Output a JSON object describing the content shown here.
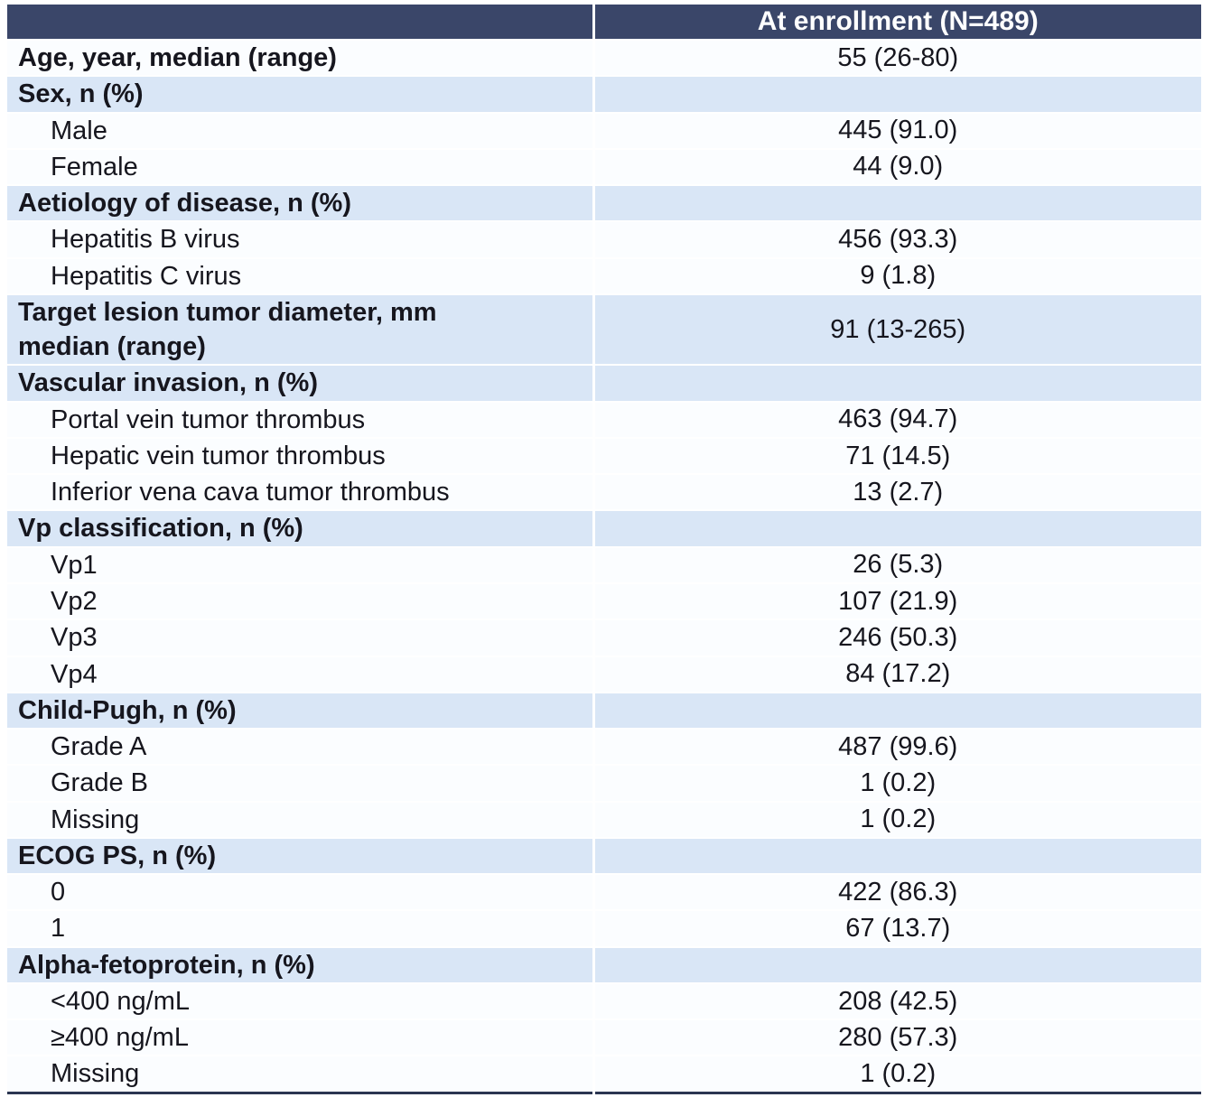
{
  "table": {
    "title_semantic": "Baseline characteristics table",
    "column_header": "At enrollment (N=489)",
    "rows": [
      {
        "label": "Age, year, median (range)",
        "value": "55 (26-80)",
        "bold": true,
        "highlight": false,
        "indent": false
      },
      {
        "label": "Sex, n (%)",
        "value": "",
        "bold": true,
        "highlight": true,
        "indent": false
      },
      {
        "label": "Male",
        "value": "445 (91.0)",
        "bold": false,
        "highlight": false,
        "indent": true
      },
      {
        "label": "Female",
        "value": "44 (9.0)",
        "bold": false,
        "highlight": false,
        "indent": true
      },
      {
        "label": "Aetiology of disease, n (%)",
        "value": "",
        "bold": true,
        "highlight": true,
        "indent": false
      },
      {
        "label": "Hepatitis B virus",
        "value": "456 (93.3)",
        "bold": false,
        "highlight": false,
        "indent": true
      },
      {
        "label": "Hepatitis C virus",
        "value": "9 (1.8)",
        "bold": false,
        "highlight": false,
        "indent": true
      },
      {
        "label": "Target lesion tumor diameter, mm\nmedian (range)",
        "value": "91 (13-265)",
        "bold": true,
        "highlight": true,
        "indent": false
      },
      {
        "label": "Vascular invasion, n (%)",
        "value": "",
        "bold": true,
        "highlight": true,
        "indent": false
      },
      {
        "label": "Portal vein tumor thrombus",
        "value": "463 (94.7)",
        "bold": false,
        "highlight": false,
        "indent": true
      },
      {
        "label": "Hepatic vein tumor thrombus",
        "value": "71 (14.5)",
        "bold": false,
        "highlight": false,
        "indent": true
      },
      {
        "label": "Inferior vena cava tumor thrombus",
        "value": "13 (2.7)",
        "bold": false,
        "highlight": false,
        "indent": true
      },
      {
        "label": "Vp classification, n (%)",
        "value": "",
        "bold": true,
        "highlight": true,
        "indent": false
      },
      {
        "label": "Vp1",
        "value": "26 (5.3)",
        "bold": false,
        "highlight": false,
        "indent": true
      },
      {
        "label": "Vp2",
        "value": "107 (21.9)",
        "bold": false,
        "highlight": false,
        "indent": true
      },
      {
        "label": "Vp3",
        "value": "246 (50.3)",
        "bold": false,
        "highlight": false,
        "indent": true
      },
      {
        "label": "Vp4",
        "value": "84 (17.2)",
        "bold": false,
        "highlight": false,
        "indent": true
      },
      {
        "label": "Child-Pugh, n (%)",
        "value": "",
        "bold": true,
        "highlight": true,
        "indent": false
      },
      {
        "label": "Grade A",
        "value": "487 (99.6)",
        "bold": false,
        "highlight": false,
        "indent": true
      },
      {
        "label": "Grade B",
        "value": "1 (0.2)",
        "bold": false,
        "highlight": false,
        "indent": true
      },
      {
        "label": "Missing",
        "value": "1 (0.2)",
        "bold": false,
        "highlight": false,
        "indent": true
      },
      {
        "label": "ECOG PS, n (%)",
        "value": "",
        "bold": true,
        "highlight": true,
        "indent": false
      },
      {
        "label": "0",
        "value": "422 (86.3)",
        "bold": false,
        "highlight": false,
        "indent": true
      },
      {
        "label": "1",
        "value": "67 (13.7)",
        "bold": false,
        "highlight": false,
        "indent": true
      },
      {
        "label": "Alpha-fetoprotein, n (%)",
        "value": "",
        "bold": true,
        "highlight": true,
        "indent": false
      },
      {
        "label": "<400 ng/mL",
        "value": "208 (42.5)",
        "bold": false,
        "highlight": false,
        "indent": true
      },
      {
        "label": "≥400 ng/mL",
        "value": "280 (57.3)",
        "bold": false,
        "highlight": false,
        "indent": true
      },
      {
        "label": "Missing",
        "value": "1 (0.2)",
        "bold": false,
        "highlight": false,
        "indent": true
      }
    ]
  },
  "colors": {
    "header_bg": "#3A4669",
    "header_text": "#FFFFFF",
    "section_row_bg": "#D9E6F6",
    "data_row_bg": "#FBFDFF",
    "text": "#16161E",
    "bottom_border": "#2B3551",
    "divider": "#FFFFFF"
  }
}
